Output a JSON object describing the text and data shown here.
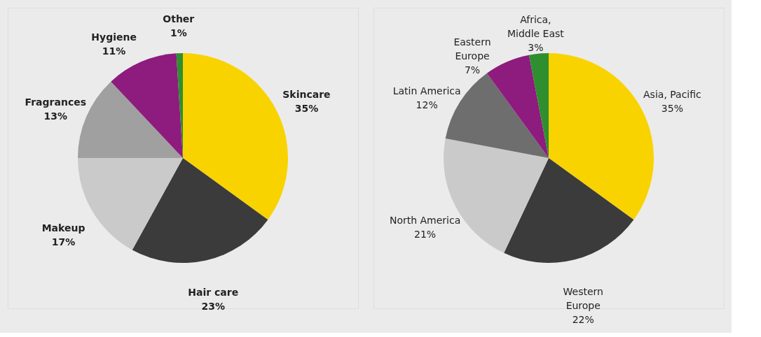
{
  "chart_data": [
    {
      "type": "pie",
      "categories": [
        "Skincare",
        "Hair care",
        "Makeup",
        "Fragrances",
        "Hygiene",
        "Other"
      ],
      "values": [
        35,
        23,
        17,
        13,
        11,
        1
      ],
      "colors": [
        "#f9d300",
        "#3b3b3b",
        "#cacaca",
        "#a0a0a0",
        "#8e1b7e",
        "#2f8f2f"
      ],
      "value_labels": [
        "35%",
        "23%",
        "17%",
        "13%",
        "11%",
        "1%"
      ]
    },
    {
      "type": "pie",
      "categories": [
        "Asia, Pacific",
        "Western Europe",
        "North America",
        "Latin America",
        "Eastern Europe",
        "Africa, Middle East"
      ],
      "values": [
        35,
        22,
        21,
        12,
        7,
        3
      ],
      "colors": [
        "#f9d300",
        "#3b3b3b",
        "#cacaca",
        "#6e6e6e",
        "#8e1b7e",
        "#2f8f2f"
      ],
      "value_labels": [
        "35%",
        "22%",
        "21%",
        "12%",
        "7%",
        "3%"
      ]
    }
  ]
}
